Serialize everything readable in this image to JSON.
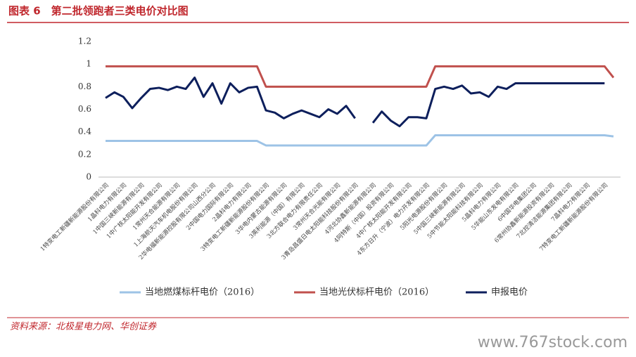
{
  "chart_data": {
    "type": "line",
    "title": "图表 6　第二批领跑者三类电价对比图",
    "source": "资料来源：北极星电力网、华创证券",
    "watermark": "www.767stock.com",
    "categories": [
      "1特变电工新疆新能源股份有限公司",
      null,
      "1晶科电力有限公司",
      null,
      "1中国三峡新能源有限公司",
      null,
      "1中广核太阳能开发有限公司",
      null,
      "1常州天合能源有限公司",
      null,
      "1上海航天汽车机电股份有限公司",
      null,
      "2华电福新能源控股有限公司山西分公司",
      null,
      "2中国电力国际有限公司",
      null,
      "2晶科电力有限公司",
      null,
      "3特变电工新疆新能源股份有限公司",
      null,
      "3华电内蒙古能源有限公司",
      null,
      "3英利能源（中国）有限公司",
      null,
      "3北方联合电力有限责任公司",
      null,
      "3常州天合光能有限公司",
      null,
      "3青岛昌盛日电太阳能科技股份有限公司",
      null,
      "4河北协鑫新能源有限公司",
      null,
      "4阿特斯（中国）投资有限公司",
      null,
      "4中广核太阳能开发有限公司",
      null,
      "4东方日升（宁波）电力开发有限公司",
      null,
      "5阳光电源股份有限公司",
      null,
      "5中国三峡新能源有限公司",
      null,
      "5中节能太阳能科技有限公司",
      null,
      "5晶科电力有限公司",
      null,
      "5华能山东发电有限公司",
      null,
      "6中国华电集团公司",
      null,
      "6常州协鑫新能源投资有限公司",
      null,
      "7北控清洁能源集团有限公司",
      null,
      "7晶科电力有限公司",
      null,
      "7特变电工新疆新能源股份有限公司",
      null
    ],
    "series": [
      {
        "name": "当地燃煤标杆电价（2016）",
        "color": "#9dc3e6",
        "values": [
          0.32,
          0.32,
          0.32,
          0.32,
          0.32,
          0.32,
          0.32,
          0.32,
          0.32,
          0.32,
          0.32,
          0.32,
          0.32,
          0.32,
          0.32,
          0.32,
          0.32,
          0.32,
          0.28,
          0.28,
          0.28,
          0.28,
          0.28,
          0.28,
          0.28,
          0.28,
          0.28,
          0.28,
          0.28,
          0.28,
          0.28,
          0.28,
          0.28,
          0.28,
          0.28,
          0.28,
          0.28,
          0.37,
          0.37,
          0.37,
          0.37,
          0.37,
          0.37,
          0.37,
          0.37,
          0.37,
          0.37,
          0.37,
          0.37,
          0.37,
          0.37,
          0.37,
          0.37,
          0.37,
          0.37,
          0.37,
          0.37,
          0.36
        ]
      },
      {
        "name": "当地光伏标杆电价（2016）",
        "color": "#c0504d",
        "values": [
          0.98,
          0.98,
          0.98,
          0.98,
          0.98,
          0.98,
          0.98,
          0.98,
          0.98,
          0.98,
          0.98,
          0.98,
          0.98,
          0.98,
          0.98,
          0.98,
          0.98,
          0.98,
          0.8,
          0.8,
          0.8,
          0.8,
          0.8,
          0.8,
          0.8,
          0.8,
          0.8,
          0.8,
          0.8,
          0.8,
          0.8,
          0.8,
          0.8,
          0.8,
          0.8,
          0.8,
          0.8,
          0.98,
          0.98,
          0.98,
          0.98,
          0.98,
          0.98,
          0.98,
          0.98,
          0.98,
          0.98,
          0.98,
          0.98,
          0.98,
          0.98,
          0.98,
          0.98,
          0.98,
          0.98,
          0.98,
          0.98,
          0.88
        ]
      },
      {
        "name": "申报电价",
        "color": "#0d1f5c",
        "values": [
          0.7,
          0.75,
          0.71,
          0.61,
          0.7,
          0.78,
          0.79,
          0.77,
          0.8,
          0.78,
          0.88,
          0.71,
          0.83,
          0.65,
          0.83,
          0.75,
          0.79,
          0.8,
          0.59,
          0.57,
          0.52,
          0.56,
          0.59,
          0.56,
          0.53,
          0.6,
          0.56,
          0.63,
          0.52,
          null,
          0.48,
          0.58,
          0.5,
          0.45,
          0.53,
          0.53,
          0.52,
          0.78,
          0.8,
          0.78,
          0.81,
          0.74,
          0.75,
          0.71,
          0.8,
          0.78,
          0.83,
          0.83,
          0.83,
          0.83,
          0.83,
          0.83,
          0.83,
          0.83,
          0.83,
          0.83,
          0.83,
          null
        ]
      }
    ],
    "ylim": [
      0,
      1.2
    ],
    "yticks": [
      0,
      0.2,
      0.4,
      0.6,
      0.8,
      1,
      1.2
    ]
  }
}
